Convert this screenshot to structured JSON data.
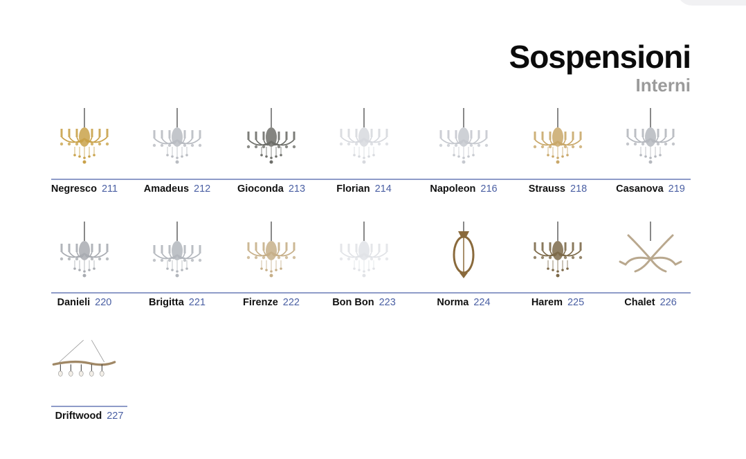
{
  "header": {
    "title": "Sospensioni",
    "subtitle": "Interni"
  },
  "colors": {
    "accent": "#4a5fa3",
    "rule": "#8e9bc8",
    "subtitle": "#9b9b9b"
  },
  "products": [
    {
      "name": "Negresco",
      "page": "211",
      "icon": "chandelier-icon",
      "tint": "#c9a24a"
    },
    {
      "name": "Amadeus",
      "page": "212",
      "icon": "chandelier-icon",
      "tint": "#b9bcc2"
    },
    {
      "name": "Gioconda",
      "page": "213",
      "icon": "chandelier-icon",
      "tint": "#6e6f6a"
    },
    {
      "name": "Florian",
      "page": "214",
      "icon": "chandelier-icon",
      "tint": "#d7d9de"
    },
    {
      "name": "Napoleon",
      "page": "216",
      "icon": "chandelier-icon",
      "tint": "#c6c9cf"
    },
    {
      "name": "Strauss",
      "page": "218",
      "icon": "chandelier-icon",
      "tint": "#c9a86a"
    },
    {
      "name": "Casanova",
      "page": "219",
      "icon": "chandelier-icon",
      "tint": "#b5b8be"
    },
    {
      "name": "Danieli",
      "page": "220",
      "icon": "chandelier-icon",
      "tint": "#a9acb2"
    },
    {
      "name": "Brigitta",
      "page": "221",
      "icon": "chandelier-icon",
      "tint": "#b3b7bd"
    },
    {
      "name": "Firenze",
      "page": "222",
      "icon": "chandelier-icon",
      "tint": "#c7b08a"
    },
    {
      "name": "Bon Bon",
      "page": "223",
      "icon": "chandelier-icon",
      "tint": "#e1e3e7"
    },
    {
      "name": "Norma",
      "page": "224",
      "icon": "lantern-icon",
      "tint": "#8a6a3c"
    },
    {
      "name": "Harem",
      "page": "225",
      "icon": "chandelier-icon",
      "tint": "#7d6a4a"
    },
    {
      "name": "Chalet",
      "page": "226",
      "icon": "antler-chandelier-icon",
      "tint": "#b9a88e"
    },
    {
      "name": "Driftwood",
      "page": "227",
      "icon": "driftwood-pendant-icon",
      "tint": "#a08866"
    }
  ]
}
